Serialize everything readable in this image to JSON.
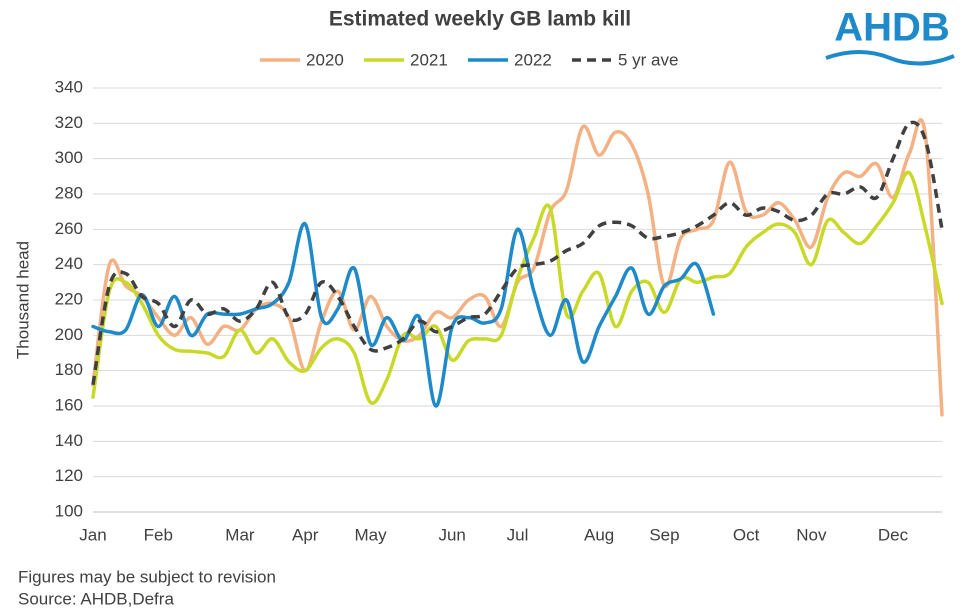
{
  "chart_data": {
    "type": "line",
    "title": "Estimated weekly GB lamb kill",
    "ylabel": "Thousand head",
    "categories": [
      "Jan",
      null,
      null,
      null,
      "Feb",
      null,
      null,
      null,
      null,
      "Mar",
      null,
      null,
      null,
      "Apr",
      null,
      null,
      null,
      "May",
      null,
      null,
      null,
      null,
      "Jun",
      null,
      null,
      null,
      "Jul",
      null,
      null,
      null,
      null,
      "Aug",
      null,
      null,
      null,
      "Sep",
      null,
      null,
      null,
      null,
      "Oct",
      null,
      null,
      null,
      "Nov",
      null,
      null,
      null,
      null,
      "Dec",
      null,
      null,
      null
    ],
    "series": [
      {
        "name": "2020",
        "color": "#f4b183",
        "dashed": false,
        "values": [
          172,
          240,
          228,
          222,
          210,
          200,
          210,
          195,
          205,
          203,
          215,
          218,
          210,
          180,
          208,
          225,
          203,
          222,
          205,
          197,
          200,
          213,
          210,
          220,
          222,
          205,
          230,
          238,
          270,
          282,
          318,
          302,
          315,
          308,
          280,
          228,
          255,
          260,
          265,
          298,
          270,
          268,
          275,
          265,
          250,
          278,
          292,
          290,
          297,
          278,
          303,
          312,
          155
        ]
      },
      {
        "name": "2021",
        "color": "#c9d92a",
        "dashed": false,
        "values": [
          165,
          225,
          230,
          218,
          200,
          192,
          191,
          190,
          188,
          203,
          190,
          198,
          185,
          180,
          193,
          198,
          190,
          162,
          175,
          200,
          198,
          205,
          186,
          197,
          198,
          200,
          232,
          255,
          272,
          212,
          225,
          235,
          205,
          225,
          230,
          213,
          232,
          230,
          233,
          235,
          250,
          258,
          263,
          258,
          240,
          265,
          258,
          252,
          262,
          275,
          292,
          260,
          218
        ]
      },
      {
        "name": "2022",
        "color": "#1f8ac9",
        "dashed": false,
        "values": [
          205,
          202,
          203,
          223,
          205,
          222,
          200,
          212,
          212,
          212,
          215,
          218,
          230,
          263,
          210,
          215,
          238,
          195,
          210,
          197,
          210,
          160,
          205,
          210,
          207,
          215,
          260,
          225,
          200,
          220,
          185,
          205,
          222,
          238,
          212,
          228,
          232,
          240,
          212,
          null,
          null,
          null,
          null,
          null,
          null,
          null,
          null,
          null,
          null,
          null,
          null,
          null,
          null
        ]
      },
      {
        "name": "5 yr ave",
        "color": "#404040",
        "dashed": true,
        "values": [
          172,
          228,
          235,
          222,
          218,
          205,
          220,
          212,
          215,
          208,
          215,
          230,
          210,
          212,
          230,
          222,
          205,
          192,
          193,
          198,
          208,
          202,
          205,
          210,
          212,
          225,
          238,
          240,
          242,
          248,
          252,
          262,
          264,
          262,
          255,
          256,
          258,
          262,
          268,
          275,
          268,
          272,
          270,
          265,
          268,
          280,
          280,
          284,
          278,
          300,
          320,
          310,
          260
        ]
      }
    ],
    "ylim": [
      100,
      340
    ],
    "yticks": [
      100,
      120,
      140,
      160,
      180,
      200,
      220,
      240,
      260,
      280,
      300,
      320,
      340
    ],
    "grid": true,
    "legend": "top"
  },
  "logo": "AHDB",
  "footnotes": [
    "Figures may be subject to revision",
    "Source: AHDB,Defra"
  ]
}
